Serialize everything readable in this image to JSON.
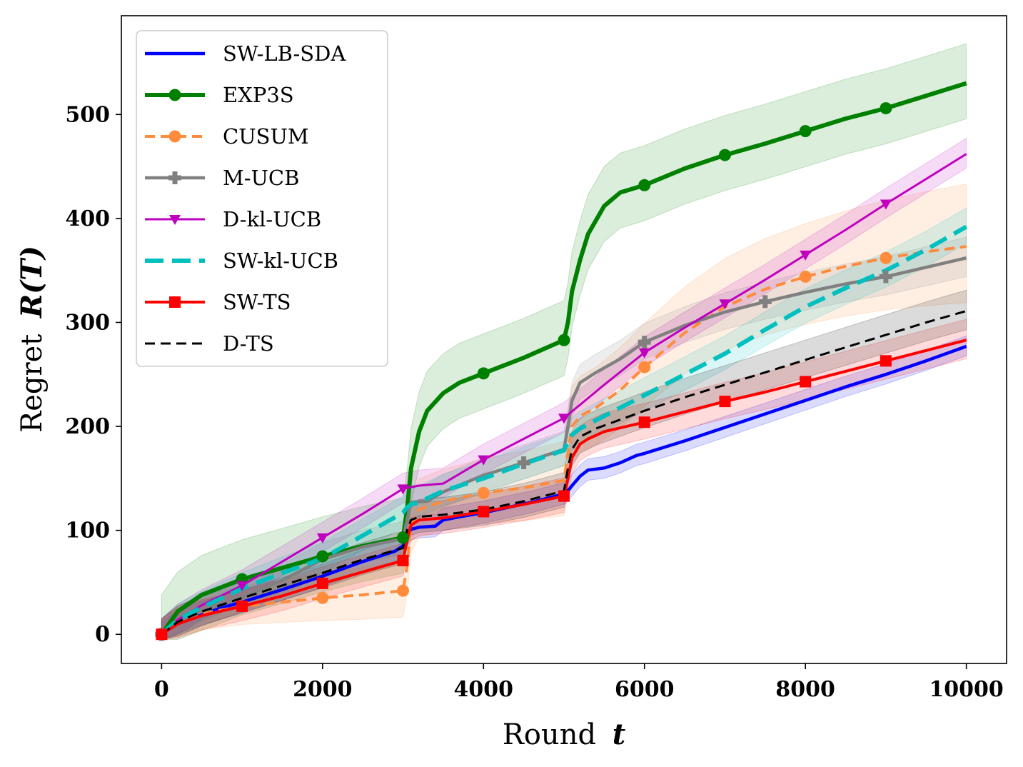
{
  "chart_data": {
    "type": "line",
    "title": "",
    "xlabel": {
      "prefix": "Round",
      "symbol": "t"
    },
    "ylabel": {
      "prefix": "Regret",
      "symbol": "R(T)"
    },
    "xlim": [
      -500,
      10500
    ],
    "ylim": [
      -28,
      595
    ],
    "xticks": [
      0,
      2000,
      4000,
      6000,
      8000,
      10000
    ],
    "yticks": [
      0,
      100,
      200,
      300,
      400,
      500
    ],
    "grid": false,
    "legend_position": "top-left",
    "series": [
      {
        "name": "SW-LB-SDA",
        "color": "#0000ff",
        "dash": "solid",
        "width": 4.5,
        "marker": "none",
        "x": [
          0,
          200,
          500,
          1000,
          1500,
          2000,
          2500,
          2900,
          3000,
          3050,
          3100,
          3200,
          3400,
          3500,
          3700,
          4000,
          4300,
          4600,
          5000,
          5050,
          5100,
          5200,
          5300,
          5400,
          5500,
          5700,
          5900,
          6000,
          6500,
          7000,
          7500,
          8000,
          8500,
          9000,
          9500,
          10000
        ],
        "y": [
          0,
          11,
          20,
          31,
          43,
          56,
          70,
          80,
          85,
          95,
          101,
          103,
          104,
          110,
          113,
          117,
          122,
          127,
          135,
          138,
          143,
          152,
          158,
          159,
          160,
          165,
          172,
          174,
          186,
          199,
          212,
          225,
          238,
          250,
          263,
          277
        ],
        "band": [
          12,
          10
        ]
      },
      {
        "name": "EXP3S",
        "color": "#008000",
        "dash": "solid",
        "width": 6,
        "marker": "circle",
        "marker_x": [
          0,
          1000,
          2000,
          3000,
          4000,
          5000,
          6000,
          7000,
          8000,
          9000
        ],
        "x": [
          0,
          200,
          500,
          1000,
          1500,
          2000,
          2500,
          3000,
          3050,
          3100,
          3200,
          3300,
          3500,
          3700,
          4000,
          4500,
          5000,
          5050,
          5100,
          5200,
          5300,
          5500,
          5700,
          6000,
          6500,
          7000,
          7500,
          8000,
          8500,
          9000,
          9500,
          10000
        ],
        "y": [
          0,
          22,
          38,
          53,
          64,
          75,
          85,
          93,
          120,
          160,
          195,
          215,
          232,
          242,
          251,
          266,
          283,
          300,
          330,
          360,
          385,
          412,
          425,
          432,
          448,
          461,
          472,
          484,
          496,
          506,
          518,
          530
        ],
        "band": [
          38,
          38
        ]
      },
      {
        "name": "CUSUM",
        "color": "#ff8c3c",
        "dash": "dash",
        "width": 4,
        "marker": "circle",
        "marker_x": [
          0,
          2000,
          3000,
          4000,
          6000,
          8000,
          9000
        ],
        "x": [
          0,
          200,
          500,
          1000,
          1500,
          2000,
          2500,
          3000,
          3050,
          3100,
          3200,
          3500,
          4000,
          4500,
          5000,
          5050,
          5100,
          5200,
          5400,
          5700,
          6000,
          6500,
          7000,
          7500,
          8000,
          8500,
          9000,
          9500,
          10000
        ],
        "y": [
          0,
          12,
          20,
          27,
          31,
          35,
          38,
          42,
          65,
          105,
          120,
          128,
          136,
          141,
          148,
          175,
          200,
          210,
          218,
          235,
          257,
          290,
          315,
          332,
          344,
          354,
          362,
          368,
          373
        ],
        "band": [
          15,
          60
        ]
      },
      {
        "name": "M-UCB",
        "color": "#808080",
        "dash": "solid",
        "width": 4.5,
        "marker": "plus",
        "marker_x": [
          0,
          4500,
          6000,
          7500,
          9000
        ],
        "x": [
          0,
          200,
          500,
          1000,
          1500,
          2000,
          2500,
          3000,
          3050,
          3100,
          3300,
          3500,
          4000,
          4500,
          5000,
          5050,
          5100,
          5200,
          5400,
          5700,
          6000,
          6500,
          7000,
          7500,
          8000,
          8500,
          9000,
          9500,
          10000
        ],
        "y": [
          0,
          12,
          22,
          36,
          52,
          72,
          84,
          92,
          110,
          127,
          128,
          137,
          153,
          165,
          178,
          200,
          225,
          242,
          252,
          265,
          281,
          297,
          310,
          320,
          329,
          337,
          344,
          353,
          362
        ],
        "band": [
          15,
          20
        ]
      },
      {
        "name": "D-kl-UCB",
        "color": "#bf00bf",
        "dash": "solid",
        "width": 3,
        "marker": "triangle-down",
        "marker_x": [
          1000,
          2000,
          3000,
          4000,
          5000,
          6000,
          7000,
          8000,
          9000
        ],
        "x": [
          0,
          200,
          500,
          1000,
          1500,
          2000,
          2500,
          3000,
          3200,
          3500,
          4000,
          4500,
          5000,
          5500,
          6000,
          6500,
          7000,
          7500,
          8000,
          8500,
          9000,
          9500,
          10000
        ],
        "y": [
          0,
          14,
          28,
          47,
          70,
          93,
          116,
          140,
          143,
          145,
          168,
          188,
          208,
          240,
          271,
          295,
          318,
          341,
          365,
          389,
          414,
          438,
          462
        ],
        "band": [
          15,
          15
        ]
      },
      {
        "name": "SW-kl-UCB",
        "color": "#00bfbf",
        "dash": "longdash",
        "width": 6,
        "marker": "none",
        "x": [
          0,
          200,
          500,
          1000,
          1500,
          2000,
          2500,
          3000,
          3050,
          3100,
          3200,
          3500,
          4000,
          4500,
          5000,
          5050,
          5100,
          5200,
          5500,
          6000,
          6500,
          7000,
          7500,
          8000,
          8500,
          9000,
          9500,
          10000
        ],
        "y": [
          0,
          14,
          26,
          44,
          59,
          73,
          95,
          117,
          122,
          125,
          127,
          138,
          150,
          164,
          177,
          185,
          192,
          198,
          210,
          230,
          250,
          270,
          293,
          315,
          333,
          350,
          370,
          392
        ],
        "band": [
          15,
          18
        ]
      },
      {
        "name": "SW-TS",
        "color": "#ff0000",
        "dash": "solid",
        "width": 4,
        "marker": "square",
        "marker_x": [
          0,
          1000,
          2000,
          3000,
          4000,
          5000,
          6000,
          7000,
          8000,
          9000
        ],
        "x": [
          0,
          200,
          500,
          1000,
          1500,
          2000,
          2500,
          3000,
          3050,
          3100,
          3200,
          3500,
          4000,
          4500,
          5000,
          5050,
          5100,
          5200,
          5300,
          5500,
          6000,
          6500,
          7000,
          7500,
          8000,
          8500,
          9000,
          9500,
          10000
        ],
        "y": [
          0,
          10,
          18,
          27,
          37,
          49,
          60,
          71,
          90,
          105,
          110,
          112,
          118,
          125,
          133,
          150,
          170,
          183,
          188,
          195,
          204,
          214,
          224,
          233,
          243,
          253,
          263,
          273,
          283
        ],
        "band": [
          15,
          20
        ]
      },
      {
        "name": "D-TS",
        "color": "#000000",
        "dash": "dash",
        "width": 3,
        "marker": "none",
        "x": [
          0,
          200,
          500,
          1000,
          1500,
          2000,
          2500,
          3000,
          3050,
          3100,
          3200,
          3500,
          4000,
          4500,
          5000,
          5050,
          5100,
          5200,
          5400,
          6000,
          6500,
          7000,
          7500,
          8000,
          8500,
          9000,
          9500,
          10000
        ],
        "y": [
          0,
          12,
          22,
          35,
          47,
          59,
          72,
          83,
          100,
          110,
          113,
          115,
          120,
          128,
          138,
          160,
          178,
          190,
          198,
          215,
          228,
          240,
          252,
          264,
          276,
          288,
          300,
          311
        ],
        "band": [
          15,
          20
        ]
      }
    ]
  }
}
